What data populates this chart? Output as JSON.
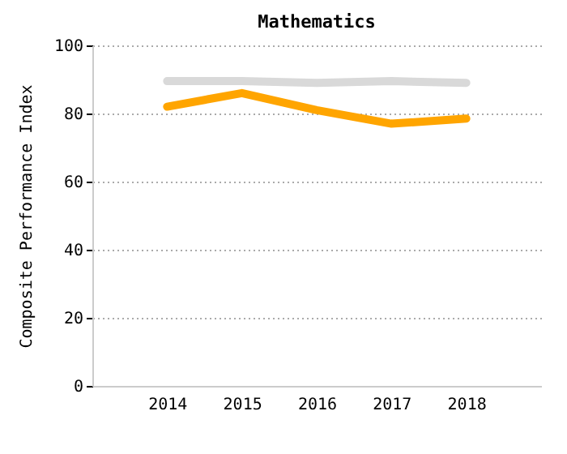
{
  "chart_data": {
    "type": "line",
    "title": "Mathematics",
    "ylabel": "Composite Performance Index",
    "categories": [
      "2014",
      "2015",
      "2016",
      "2017",
      "2018"
    ],
    "series": [
      {
        "color": "#d9d9d9",
        "values": [
          89.5,
          89.5,
          89,
          89.5,
          89
        ]
      },
      {
        "color": "#ffa500",
        "values": [
          82,
          86,
          81,
          77,
          78.5
        ]
      }
    ],
    "ylim": [
      0,
      100
    ],
    "yticks": [
      0,
      20,
      40,
      60,
      80,
      100
    ],
    "grid": "y",
    "legend": false,
    "marker": "none",
    "line_style": "solid"
  }
}
